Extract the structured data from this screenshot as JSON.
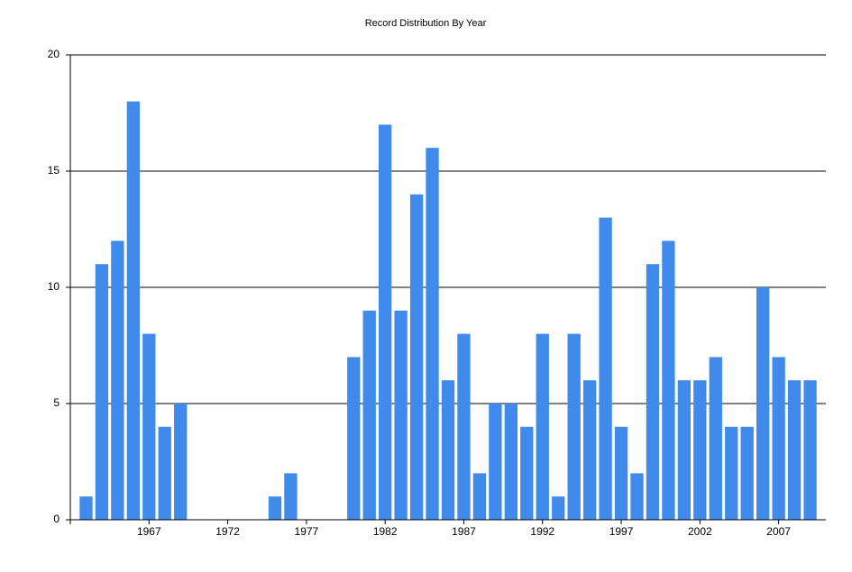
{
  "chart_data": {
    "type": "bar",
    "title": "Record Distribution By Year",
    "x": [
      1963,
      1964,
      1965,
      1966,
      1967,
      1968,
      1969,
      1970,
      1971,
      1972,
      1973,
      1974,
      1975,
      1976,
      1977,
      1978,
      1979,
      1980,
      1981,
      1982,
      1983,
      1984,
      1985,
      1986,
      1987,
      1988,
      1989,
      1990,
      1991,
      1992,
      1993,
      1994,
      1995,
      1996,
      1997,
      1998,
      1999,
      2000,
      2001,
      2002,
      2003,
      2004,
      2005,
      2006,
      2007,
      2008,
      2009
    ],
    "values": [
      1,
      11,
      12,
      18,
      8,
      4,
      5,
      0,
      0,
      0,
      0,
      0,
      1,
      2,
      0,
      0,
      0,
      7,
      9,
      17,
      9,
      14,
      16,
      6,
      8,
      2,
      5,
      5,
      4,
      8,
      1,
      8,
      6,
      13,
      4,
      2,
      11,
      12,
      6,
      6,
      7,
      4,
      4,
      10,
      7,
      6,
      6
    ],
    "color": "#3f8aea",
    "xlim": [
      1962,
      2010
    ],
    "xticks": [
      1967,
      1972,
      1977,
      1982,
      1987,
      1992,
      1997,
      2002,
      2007
    ],
    "ylim": [
      0,
      20
    ],
    "yticks": [
      0,
      5,
      10,
      15,
      20
    ],
    "grid": true
  }
}
